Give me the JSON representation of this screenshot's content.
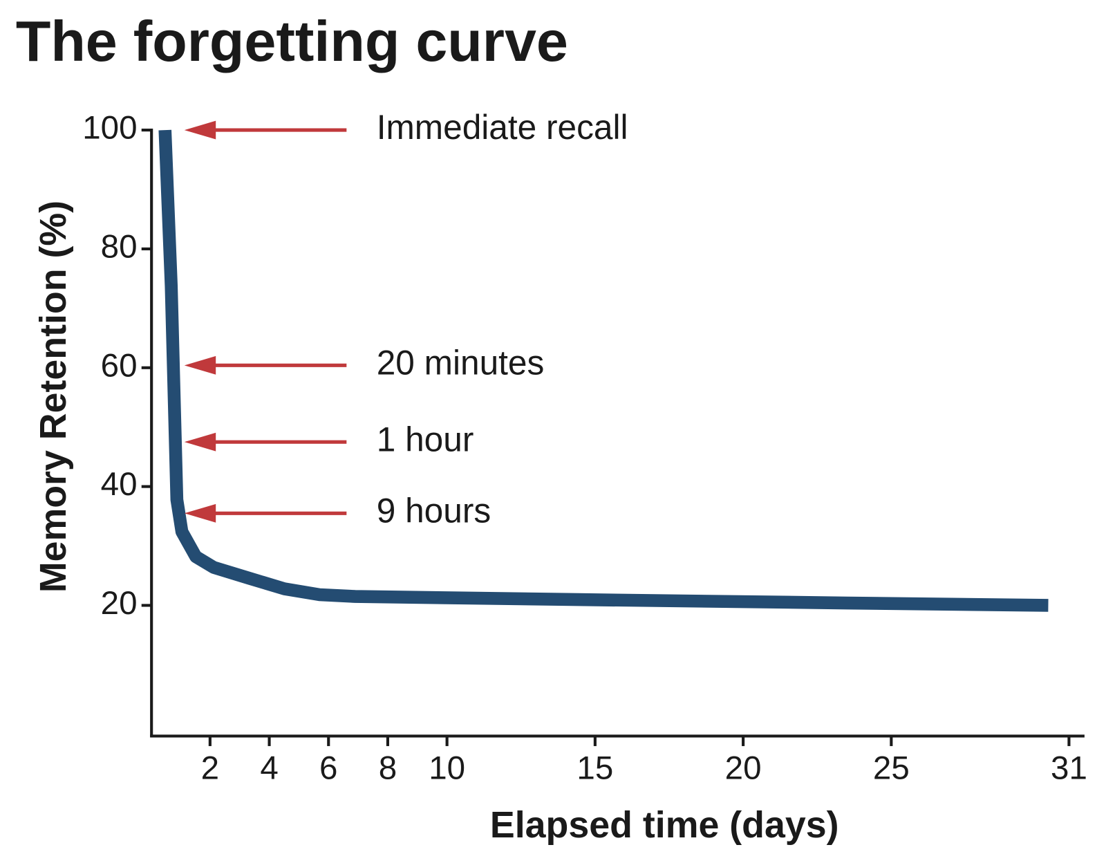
{
  "chart_data": {
    "type": "line",
    "title": "The forgetting curve",
    "x_label": "Elapsed time (days)",
    "y_label": "Memory Retention (%)",
    "x": [
      0.48,
      0.69,
      0.88,
      1.05,
      1.52,
      2.12,
      3.3,
      4.5,
      5.7,
      6.9,
      14.0,
      23.5,
      30.3
    ],
    "values": [
      100,
      73.8,
      37.8,
      32.4,
      28.2,
      26.4,
      24.6,
      22.8,
      21.8,
      21.5,
      21.0,
      20.4,
      20.0
    ],
    "color": "#244c72",
    "xlim": [
      0,
      31.5
    ],
    "ylim": [
      -2,
      100
    ],
    "xticks": [
      2,
      4,
      6,
      8,
      10,
      15,
      20,
      25,
      31
    ],
    "yticks": [
      20,
      40,
      60,
      80,
      100
    ],
    "annotations": [
      {
        "text": "Immediate recall",
        "y": 100
      },
      {
        "text": "20 minutes",
        "y": 60.4
      },
      {
        "text": "1 hour",
        "y": 47.5
      },
      {
        "text": "9 hours",
        "y": 35.5
      }
    ],
    "annotation_color": "#c0393b"
  }
}
